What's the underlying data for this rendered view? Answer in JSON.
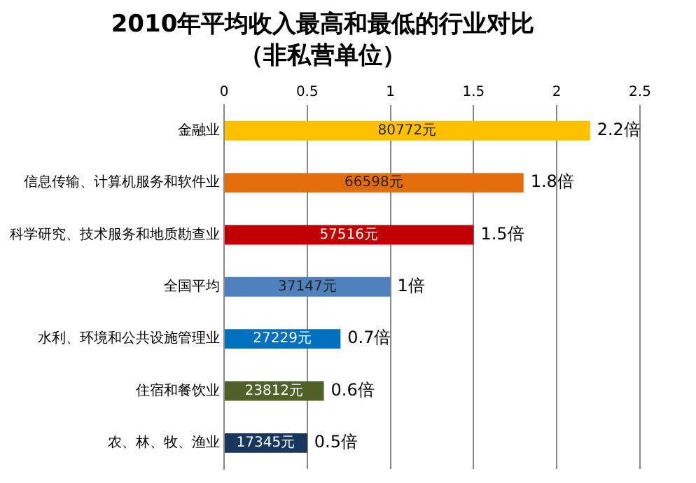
{
  "chart_data": {
    "type": "bar",
    "orientation": "horizontal",
    "title": "2010年平均收入最高和最低的行业对比",
    "subtitle": "（非私营单位）",
    "categories": [
      "金融业",
      "信息传输、计算机服务和软件业",
      "科学研究、技术服务和地质勘查业",
      "全国平均",
      "水利、环境和公共设施管理业",
      "住宿和餐饮业",
      "农、林、牧、渔业"
    ],
    "values": [
      2.2,
      1.8,
      1.5,
      1,
      0.7,
      0.6,
      0.5
    ],
    "colors": [
      "#ffc000",
      "#e46c0a",
      "#c00000",
      "#4f81bd",
      "#0070c0",
      "#4f6228",
      "#17375e"
    ],
    "value_labels": [
      "2.2倍",
      "1.8倍",
      "1.5倍",
      "1倍",
      "0.7倍",
      "0.6倍",
      "0.5倍"
    ],
    "annotations": [
      "80772元",
      "66598元",
      "57516元",
      "37147元",
      "27229元",
      "23812元",
      "17345元"
    ],
    "xlim": [
      0,
      2.5
    ],
    "xticks": [
      0,
      0.5,
      1,
      1.5,
      2,
      2.5
    ],
    "grid": "x",
    "legend": false
  }
}
